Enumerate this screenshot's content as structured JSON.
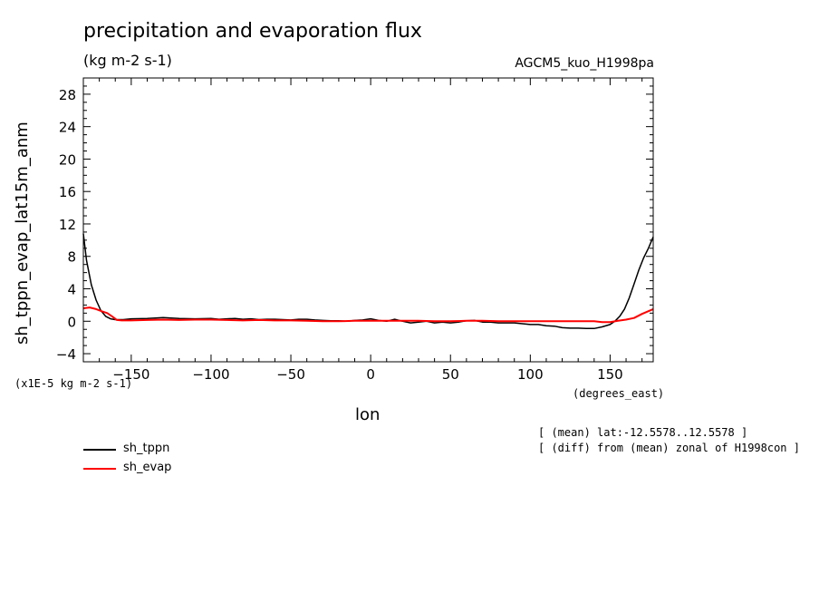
{
  "header": {
    "title": "precipitation and evaporation flux",
    "units": "(kg m-2 s-1)",
    "model": "AGCM5_kuo_H1998pa"
  },
  "footnotes": {
    "y_scale": "(x1E-5 kg m-2 s-1)",
    "x_units": "(degrees_east)",
    "mean_note": "[ (mean) lat:-12.5578..12.5578 ]",
    "diff_note": "[ (diff) from (mean) zonal of H1998con ]"
  },
  "colors": {
    "sh_tppn": "#000000",
    "sh_evap": "#ff0000"
  },
  "chart_data": {
    "type": "line",
    "title": "precipitation and evaporation flux",
    "xlabel": "lon",
    "ylabel": "sh_tppn_evap_lat15m_anm",
    "xlim": [
      -180,
      177
    ],
    "ylim": [
      -5,
      30
    ],
    "x_ticks": [
      -150,
      -100,
      -50,
      0,
      50,
      100,
      150
    ],
    "y_ticks": [
      -4,
      0,
      4,
      8,
      12,
      16,
      20,
      24,
      28
    ],
    "legend_position": "below-left",
    "grid": false,
    "series": [
      {
        "name": "sh_tppn",
        "color": "#000000",
        "x": [
          -180,
          -178,
          -175,
          -172,
          -169,
          -166,
          -163,
          -160,
          -155,
          -150,
          -140,
          -130,
          -120,
          -110,
          -100,
          -95,
          -90,
          -85,
          -80,
          -75,
          -70,
          -65,
          -60,
          -55,
          -50,
          -45,
          -40,
          -35,
          -30,
          -25,
          -20,
          -15,
          -10,
          -5,
          0,
          5,
          10,
          15,
          20,
          25,
          30,
          35,
          40,
          45,
          50,
          55,
          60,
          65,
          70,
          75,
          80,
          85,
          90,
          95,
          100,
          105,
          110,
          115,
          120,
          125,
          130,
          135,
          140,
          145,
          150,
          153,
          156,
          159,
          162,
          165,
          168,
          171,
          174,
          177
        ],
        "y": [
          10.8,
          7.5,
          4.5,
          2.6,
          1.3,
          0.6,
          0.3,
          0.2,
          0.2,
          0.3,
          0.35,
          0.45,
          0.35,
          0.3,
          0.35,
          0.25,
          0.3,
          0.35,
          0.25,
          0.3,
          0.2,
          0.25,
          0.25,
          0.2,
          0.15,
          0.25,
          0.25,
          0.15,
          0.1,
          0.05,
          0.05,
          0.0,
          0.1,
          0.15,
          0.3,
          0.1,
          0.0,
          0.25,
          0.0,
          -0.2,
          -0.1,
          0.0,
          -0.2,
          -0.1,
          -0.2,
          -0.1,
          0.05,
          0.1,
          -0.1,
          -0.1,
          -0.2,
          -0.2,
          -0.2,
          -0.3,
          -0.4,
          -0.4,
          -0.55,
          -0.6,
          -0.8,
          -0.85,
          -0.85,
          -0.9,
          -0.9,
          -0.7,
          -0.4,
          0.0,
          0.6,
          1.5,
          2.9,
          4.6,
          6.3,
          7.8,
          9.0,
          10.4
        ]
      },
      {
        "name": "sh_evap",
        "color": "#ff0000",
        "x": [
          -180,
          -176,
          -172,
          -168,
          -165,
          -162,
          -159,
          -156,
          -150,
          -140,
          -130,
          -120,
          -110,
          -100,
          -90,
          -80,
          -70,
          -60,
          -50,
          -40,
          -30,
          -20,
          -10,
          0,
          10,
          20,
          30,
          40,
          50,
          60,
          70,
          80,
          90,
          100,
          110,
          120,
          130,
          140,
          145,
          150,
          155,
          160,
          165,
          170,
          177
        ],
        "y": [
          1.6,
          1.7,
          1.5,
          1.2,
          1.0,
          0.6,
          0.15,
          0.1,
          0.1,
          0.15,
          0.2,
          0.15,
          0.2,
          0.2,
          0.15,
          0.1,
          0.15,
          0.1,
          0.1,
          0.05,
          0.0,
          0.0,
          0.05,
          0.05,
          0.05,
          0.05,
          0.05,
          0.0,
          0.0,
          0.05,
          0.05,
          0.0,
          0.0,
          0.0,
          0.0,
          0.0,
          0.0,
          0.0,
          -0.1,
          -0.1,
          0.05,
          0.2,
          0.4,
          0.9,
          1.5
        ]
      }
    ]
  }
}
